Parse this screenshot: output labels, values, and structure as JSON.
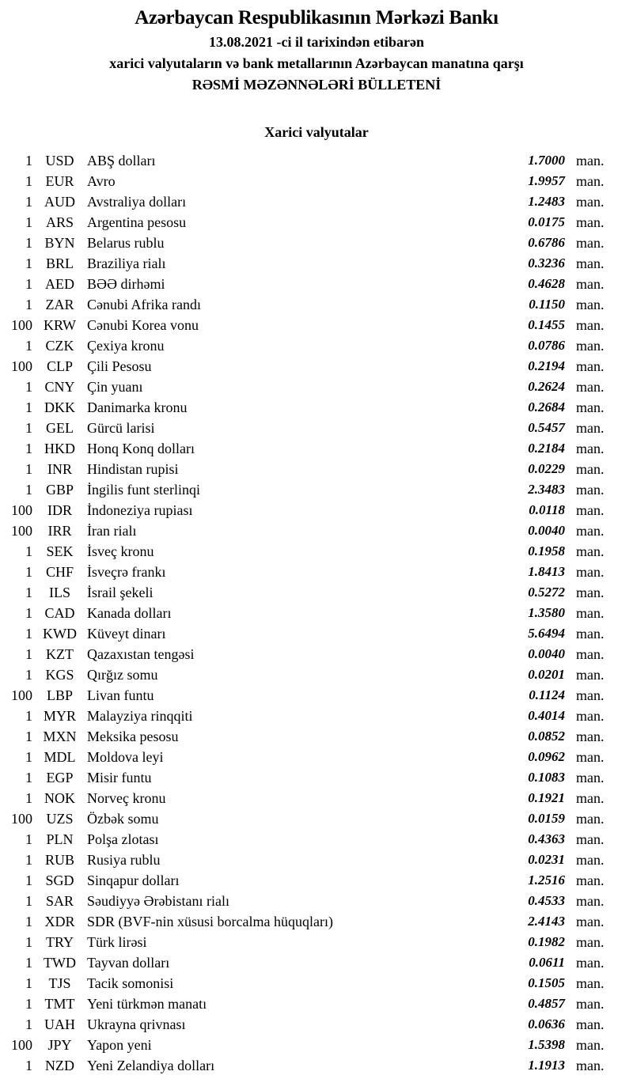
{
  "header": {
    "title": "Azərbaycan Respublikasının Mərkəzi Bankı",
    "date_line": "13.08.2021 -ci il tarixindən etibarən",
    "subject_line": "xarici valyutaların və bank metallarının Azərbaycan manatına qarşı",
    "bulletin_line": "RƏSMİ MƏZƏNNƏLƏRİ BÜLLETENİ"
  },
  "section": {
    "title": "Xarici valyutalar"
  },
  "unit_label": "man.",
  "rates": [
    {
      "nominal": "1",
      "code": "USD",
      "name": "ABŞ dolları",
      "rate": "1.7000"
    },
    {
      "nominal": "1",
      "code": "EUR",
      "name": "Avro",
      "rate": "1.9957"
    },
    {
      "nominal": "1",
      "code": "AUD",
      "name": "Avstraliya dolları",
      "rate": "1.2483"
    },
    {
      "nominal": "1",
      "code": "ARS",
      "name": "Argentina pesosu",
      "rate": "0.0175"
    },
    {
      "nominal": "1",
      "code": "BYN",
      "name": "Belarus rublu",
      "rate": "0.6786"
    },
    {
      "nominal": "1",
      "code": "BRL",
      "name": "Braziliya rialı",
      "rate": "0.3236"
    },
    {
      "nominal": "1",
      "code": "AED",
      "name": "BƏƏ dirhəmi",
      "rate": "0.4628"
    },
    {
      "nominal": "1",
      "code": "ZAR",
      "name": "Cənubi Afrika randı",
      "rate": "0.1150"
    },
    {
      "nominal": "100",
      "code": "KRW",
      "name": "Cənubi Korea vonu",
      "rate": "0.1455"
    },
    {
      "nominal": "1",
      "code": "CZK",
      "name": "Çexiya kronu",
      "rate": "0.0786"
    },
    {
      "nominal": "100",
      "code": "CLP",
      "name": "Çili Pesosu",
      "rate": "0.2194"
    },
    {
      "nominal": "1",
      "code": "CNY",
      "name": "Çin yuanı",
      "rate": "0.2624"
    },
    {
      "nominal": "1",
      "code": "DKK",
      "name": "Danimarka kronu",
      "rate": "0.2684"
    },
    {
      "nominal": "1",
      "code": "GEL",
      "name": "Gürcü larisi",
      "rate": "0.5457"
    },
    {
      "nominal": "1",
      "code": "HKD",
      "name": "Honq Konq dolları",
      "rate": "0.2184"
    },
    {
      "nominal": "1",
      "code": "INR",
      "name": "Hindistan rupisi",
      "rate": "0.0229"
    },
    {
      "nominal": "1",
      "code": "GBP",
      "name": "İngilis funt sterlinqi",
      "rate": "2.3483"
    },
    {
      "nominal": "100",
      "code": "IDR",
      "name": "İndoneziya rupiası",
      "rate": "0.0118"
    },
    {
      "nominal": "100",
      "code": "IRR",
      "name": "İran rialı",
      "rate": "0.0040"
    },
    {
      "nominal": "1",
      "code": "SEK",
      "name": "İsveç kronu",
      "rate": "0.1958"
    },
    {
      "nominal": "1",
      "code": "CHF",
      "name": "İsveçrə frankı",
      "rate": "1.8413"
    },
    {
      "nominal": "1",
      "code": "ILS",
      "name": "İsrail şekeli",
      "rate": "0.5272"
    },
    {
      "nominal": "1",
      "code": "CAD",
      "name": "Kanada dolları",
      "rate": "1.3580"
    },
    {
      "nominal": "1",
      "code": "KWD",
      "name": "Küveyt dinarı",
      "rate": "5.6494"
    },
    {
      "nominal": "1",
      "code": "KZT",
      "name": "Qazaxıstan tengəsi",
      "rate": "0.0040"
    },
    {
      "nominal": "1",
      "code": "KGS",
      "name": "Qırğız somu",
      "rate": "0.0201"
    },
    {
      "nominal": "100",
      "code": "LBP",
      "name": "Livan funtu",
      "rate": "0.1124"
    },
    {
      "nominal": "1",
      "code": "MYR",
      "name": "Malayziya rinqqiti",
      "rate": "0.4014"
    },
    {
      "nominal": "1",
      "code": "MXN",
      "name": "Meksika pesosu",
      "rate": "0.0852"
    },
    {
      "nominal": "1",
      "code": "MDL",
      "name": "Moldova leyi",
      "rate": "0.0962"
    },
    {
      "nominal": "1",
      "code": "EGP",
      "name": "Misir funtu",
      "rate": "0.1083"
    },
    {
      "nominal": "1",
      "code": "NOK",
      "name": "Norveç kronu",
      "rate": "0.1921"
    },
    {
      "nominal": "100",
      "code": "UZS",
      "name": "Özbək somu",
      "rate": "0.0159"
    },
    {
      "nominal": "1",
      "code": "PLN",
      "name": "Polşa zlotası",
      "rate": "0.4363"
    },
    {
      "nominal": "1",
      "code": "RUB",
      "name": "Rusiya rublu",
      "rate": "0.0231"
    },
    {
      "nominal": "1",
      "code": "SGD",
      "name": "Sinqapur dolları",
      "rate": "1.2516"
    },
    {
      "nominal": "1",
      "code": "SAR",
      "name": "Səudiyyə Ərəbistanı rialı",
      "rate": "0.4533"
    },
    {
      "nominal": "1",
      "code": "XDR",
      "name": "SDR (BVF-nin xüsusi borcalma hüquqları)",
      "rate": "2.4143"
    },
    {
      "nominal": "1",
      "code": "TRY",
      "name": "Türk lirəsi",
      "rate": "0.1982"
    },
    {
      "nominal": "1",
      "code": "TWD",
      "name": "Tayvan dolları",
      "rate": "0.0611"
    },
    {
      "nominal": "1",
      "code": "TJS",
      "name": "Tacik somonisi",
      "rate": "0.1505"
    },
    {
      "nominal": "1",
      "code": "TMT",
      "name": "Yeni türkmən manatı",
      "rate": "0.4857"
    },
    {
      "nominal": "1",
      "code": "UAH",
      "name": "Ukrayna qrivnası",
      "rate": "0.0636"
    },
    {
      "nominal": "100",
      "code": "JPY",
      "name": "Yapon yeni",
      "rate": "1.5398"
    },
    {
      "nominal": "1",
      "code": "NZD",
      "name": "Yeni Zelandiya dolları",
      "rate": "1.1913"
    }
  ]
}
